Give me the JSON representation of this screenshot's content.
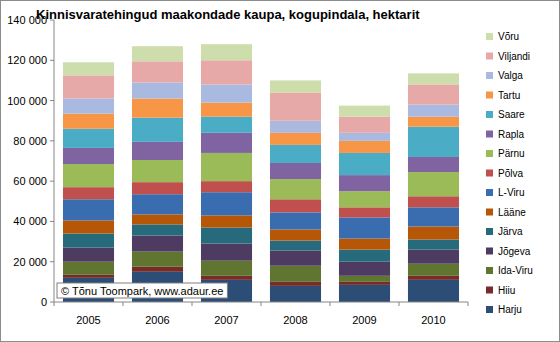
{
  "chart_data": {
    "type": "bar",
    "stacked": true,
    "title": "Kinnisvaratehingud maakondade kaupa, kogupindala, hektarit",
    "annotations": [
      "© Tõnu Toompark, www.adaur.ee"
    ],
    "categories": [
      "2005",
      "2006",
      "2007",
      "2008",
      "2009",
      "2010"
    ],
    "ylim": [
      0,
      140000
    ],
    "yticks": [
      0,
      {
        "value": 20000,
        "label": "20 000"
      },
      {
        "value": 40000,
        "label": "40 000"
      },
      {
        "value": 60000,
        "label": "60 000"
      },
      {
        "value": 80000,
        "label": "80 000"
      },
      {
        "value": 100000,
        "label": "100 000"
      },
      {
        "value": 120000,
        "label": "120 000"
      },
      {
        "value": 140000,
        "label": "140 000"
      }
    ],
    "grid": false,
    "legend": "right",
    "series": [
      {
        "name": "Harju",
        "color": "#2C4D75",
        "values": [
          12000,
          15000,
          11000,
          8000,
          8500,
          11000
        ]
      },
      {
        "name": "Hiiu",
        "color": "#772C2A",
        "values": [
          1500,
          2500,
          2000,
          2000,
          1500,
          2000
        ]
      },
      {
        "name": "Ida-Viru",
        "color": "#5F7530",
        "values": [
          6500,
          7500,
          7500,
          8000,
          3000,
          6000
        ]
      },
      {
        "name": "Jõgeva",
        "color": "#4D3B62",
        "values": [
          7000,
          8000,
          8500,
          7500,
          7000,
          7000
        ]
      },
      {
        "name": "Järva",
        "color": "#276A7C",
        "values": [
          7000,
          5500,
          8000,
          5000,
          6000,
          5000
        ]
      },
      {
        "name": "Lääne",
        "color": "#B65708",
        "values": [
          6500,
          5000,
          6000,
          5500,
          5500,
          6500
        ]
      },
      {
        "name": "L-Viru",
        "color": "#3A6CB0",
        "values": [
          10500,
          10000,
          11500,
          8500,
          10500,
          9500
        ]
      },
      {
        "name": "Põlva",
        "color": "#C0504D",
        "values": [
          6000,
          6000,
          5500,
          6500,
          5000,
          5500
        ]
      },
      {
        "name": "Pärnu",
        "color": "#9BBB59",
        "values": [
          11500,
          11000,
          14000,
          10000,
          8000,
          12000
        ]
      },
      {
        "name": "Rapla",
        "color": "#8064A2",
        "values": [
          8000,
          9000,
          10000,
          8000,
          8000,
          7500
        ]
      },
      {
        "name": "Saare",
        "color": "#4BACC6",
        "values": [
          9500,
          12000,
          8000,
          9000,
          11000,
          15000
        ]
      },
      {
        "name": "Tartu",
        "color": "#F79646",
        "values": [
          7500,
          9500,
          7000,
          6000,
          6000,
          5000
        ]
      },
      {
        "name": "Valga",
        "color": "#A9B9E0",
        "values": [
          7500,
          8000,
          9000,
          6000,
          4000,
          6000
        ]
      },
      {
        "name": "Viljandi",
        "color": "#E6A9A8",
        "values": [
          11500,
          10500,
          12000,
          14000,
          8000,
          10000
        ]
      },
      {
        "name": "Võru",
        "color": "#CDDDAC",
        "values": [
          6500,
          7500,
          8000,
          6000,
          5500,
          5500
        ]
      }
    ]
  }
}
